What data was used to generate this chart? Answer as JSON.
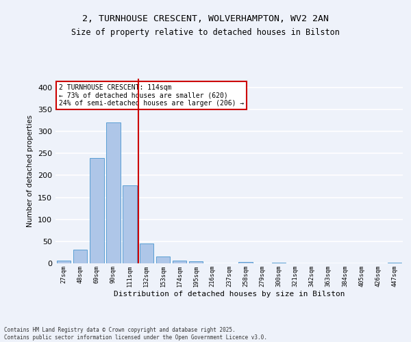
{
  "title_line1": "2, TURNHOUSE CRESCENT, WOLVERHAMPTON, WV2 2AN",
  "title_line2": "Size of property relative to detached houses in Bilston",
  "xlabel": "Distribution of detached houses by size in Bilston",
  "ylabel": "Number of detached properties",
  "categories": [
    "27sqm",
    "48sqm",
    "69sqm",
    "90sqm",
    "111sqm",
    "132sqm",
    "153sqm",
    "174sqm",
    "195sqm",
    "216sqm",
    "237sqm",
    "258sqm",
    "279sqm",
    "300sqm",
    "321sqm",
    "342sqm",
    "363sqm",
    "384sqm",
    "405sqm",
    "426sqm",
    "447sqm"
  ],
  "values": [
    7,
    31,
    240,
    320,
    178,
    45,
    15,
    6,
    4,
    0,
    0,
    3,
    0,
    1,
    0,
    0,
    0,
    0,
    0,
    0,
    2
  ],
  "bar_color": "#aec6e8",
  "bar_edge_color": "#5a9fd4",
  "highlight_line_color": "#cc0000",
  "annotation_text": "2 TURNHOUSE CRESCENT: 114sqm\n← 73% of detached houses are smaller (620)\n24% of semi-detached houses are larger (206) →",
  "annotation_box_color": "#ffffff",
  "annotation_box_edge": "#cc0000",
  "ylim": [
    0,
    420
  ],
  "yticks": [
    0,
    50,
    100,
    150,
    200,
    250,
    300,
    350,
    400
  ],
  "background_color": "#eef2fa",
  "grid_color": "#ffffff",
  "footer": "Contains HM Land Registry data © Crown copyright and database right 2025.\nContains public sector information licensed under the Open Government Licence v3.0."
}
